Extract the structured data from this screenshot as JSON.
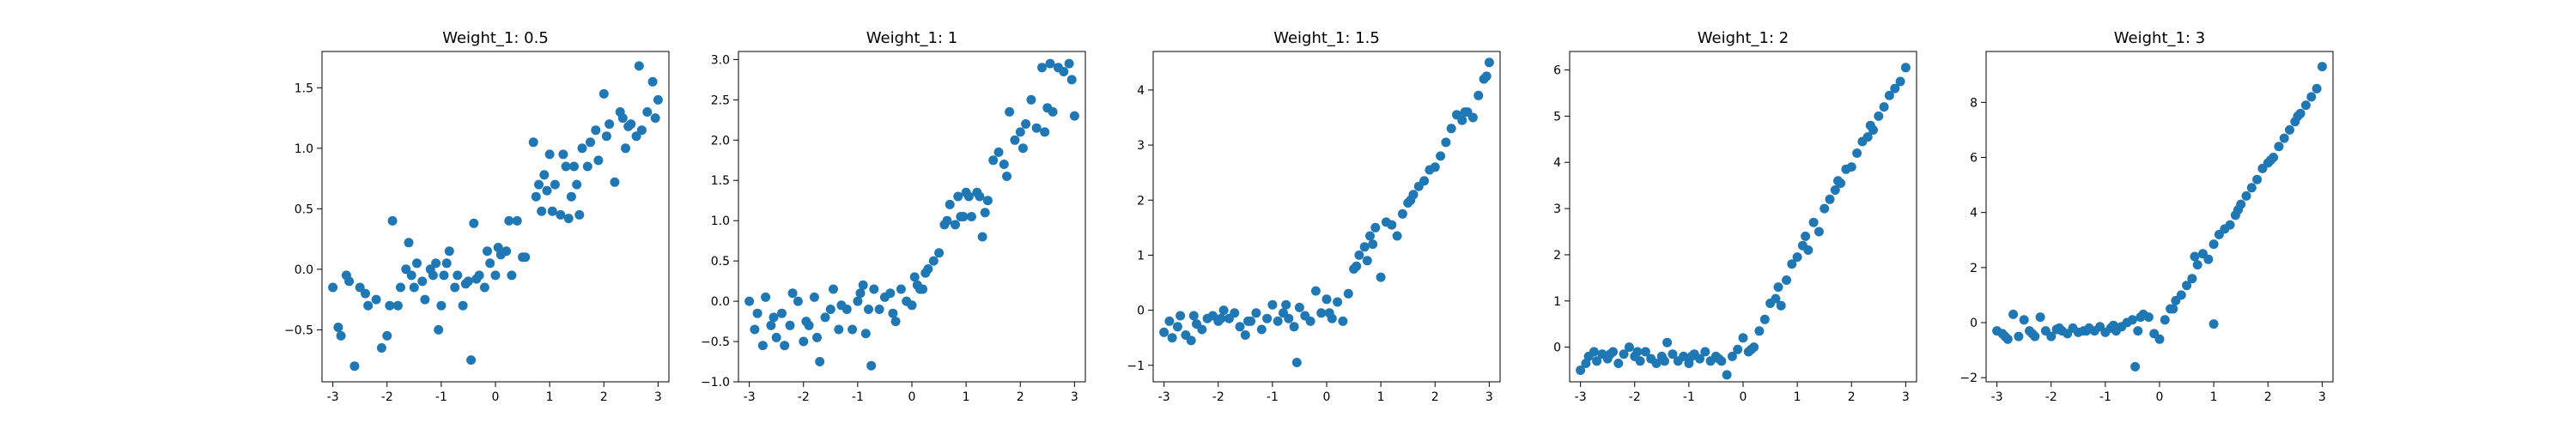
{
  "figure": {
    "point_color": "#1f77b4"
  },
  "chart_data": [
    {
      "type": "scatter",
      "title": "Weight_1: 0.5",
      "xlim": [
        -3.2,
        3.2
      ],
      "ylim": [
        -0.93,
        1.8
      ],
      "xticks": [
        -3,
        -2,
        -1,
        0,
        1,
        2,
        3
      ],
      "yticks": [
        -0.5,
        0.0,
        0.5,
        1.0,
        1.5
      ],
      "ytick_labels": [
        "−0.5",
        "0.0",
        "0.5",
        "1.0",
        "1.5"
      ],
      "x": [
        -3.0,
        -2.9,
        -2.85,
        -2.75,
        -2.7,
        -2.6,
        -2.5,
        -2.4,
        -2.35,
        -2.2,
        -2.1,
        -2.0,
        -1.95,
        -1.9,
        -1.8,
        -1.75,
        -1.65,
        -1.55,
        -1.5,
        -1.45,
        -1.35,
        -1.3,
        -1.2,
        -1.15,
        -1.1,
        -1.0,
        -0.95,
        -0.9,
        -0.85,
        -0.75,
        -0.7,
        -0.6,
        -0.55,
        -0.5,
        -0.4,
        -0.35,
        -0.3,
        -0.2,
        -0.15,
        -0.1,
        0.0,
        0.05,
        0.1,
        0.2,
        0.25,
        0.3,
        0.4,
        0.5,
        0.55,
        0.7,
        0.75,
        0.8,
        0.85,
        0.95,
        1.0,
        1.05,
        1.1,
        1.2,
        1.25,
        1.3,
        1.35,
        1.4,
        1.5,
        1.55,
        1.6,
        1.7,
        1.75,
        1.85,
        1.9,
        2.0,
        2.05,
        2.1,
        2.2,
        2.3,
        2.35,
        2.4,
        2.5,
        2.6,
        2.65,
        2.7,
        2.8,
        2.9,
        2.95,
        3.0,
        -0.45,
        -1.05,
        -1.6,
        0.9,
        1.45,
        2.45
      ],
      "y": [
        -0.15,
        -0.48,
        -0.55,
        -0.05,
        -0.1,
        -0.8,
        -0.15,
        -0.2,
        -0.3,
        -0.25,
        -0.65,
        -0.55,
        -0.3,
        0.4,
        -0.3,
        -0.15,
        0.0,
        -0.05,
        -0.15,
        0.05,
        -0.1,
        -0.25,
        0.0,
        -0.05,
        0.05,
        -0.3,
        -0.05,
        0.05,
        0.15,
        -0.15,
        -0.05,
        -0.3,
        -0.12,
        -0.1,
        0.38,
        -0.08,
        -0.05,
        -0.15,
        0.15,
        0.05,
        -0.05,
        0.18,
        0.12,
        0.15,
        0.4,
        -0.05,
        0.4,
        0.1,
        0.1,
        1.05,
        0.6,
        0.7,
        0.48,
        0.65,
        0.95,
        0.48,
        0.7,
        0.45,
        0.95,
        0.85,
        0.42,
        0.6,
        0.7,
        0.45,
        1.0,
        0.85,
        1.05,
        1.15,
        0.9,
        1.45,
        1.1,
        1.2,
        0.72,
        1.3,
        1.25,
        1.0,
        1.2,
        1.1,
        1.68,
        1.15,
        1.3,
        1.55,
        1.25,
        1.4,
        -0.75,
        -0.5,
        0.22,
        0.78,
        0.85,
        1.18
      ]
    },
    {
      "type": "scatter",
      "title": "Weight_1: 1",
      "xlim": [
        -3.2,
        3.2
      ],
      "ylim": [
        -1.0,
        3.1
      ],
      "xticks": [
        -3,
        -2,
        -1,
        0,
        1,
        2,
        3
      ],
      "yticks": [
        -1.0,
        -0.5,
        0.0,
        0.5,
        1.0,
        1.5,
        2.0,
        2.5,
        3.0
      ],
      "ytick_labels": [
        "−1.0",
        "−0.5",
        "0.0",
        "0.5",
        "1.0",
        "1.5",
        "2.0",
        "2.5",
        "3.0"
      ],
      "x": [
        -3.0,
        -2.9,
        -2.85,
        -2.75,
        -2.7,
        -2.6,
        -2.5,
        -2.4,
        -2.35,
        -2.25,
        -2.2,
        -2.1,
        -2.0,
        -1.95,
        -1.9,
        -1.8,
        -1.7,
        -1.6,
        -1.5,
        -1.45,
        -1.35,
        -1.3,
        -1.2,
        -1.1,
        -1.0,
        -0.95,
        -0.9,
        -0.8,
        -0.75,
        -0.7,
        -0.6,
        -0.5,
        -0.4,
        -0.35,
        -0.3,
        -0.2,
        -0.1,
        0.0,
        0.05,
        0.1,
        0.2,
        0.25,
        0.3,
        0.4,
        0.5,
        0.6,
        0.65,
        0.7,
        0.8,
        0.85,
        0.9,
        1.0,
        1.05,
        1.1,
        1.2,
        1.3,
        1.35,
        1.4,
        1.5,
        1.6,
        1.7,
        1.75,
        1.8,
        1.9,
        2.0,
        2.05,
        2.1,
        2.2,
        2.3,
        2.4,
        2.5,
        2.55,
        2.6,
        2.7,
        2.8,
        2.9,
        2.95,
        3.0,
        -2.55,
        -1.75,
        -0.85,
        0.15,
        0.95,
        1.25,
        2.45
      ],
      "y": [
        0.0,
        -0.35,
        -0.15,
        -0.55,
        0.05,
        -0.3,
        -0.45,
        -0.15,
        -0.55,
        -0.3,
        0.1,
        0.0,
        -0.5,
        -0.25,
        -0.3,
        0.05,
        -0.75,
        -0.2,
        -0.1,
        0.15,
        -0.35,
        -0.05,
        -0.1,
        -0.35,
        0.0,
        0.1,
        0.2,
        -0.1,
        -0.8,
        0.15,
        -0.1,
        0.05,
        0.1,
        -0.15,
        -0.25,
        0.15,
        0.0,
        -0.05,
        0.3,
        0.2,
        0.15,
        0.35,
        0.4,
        0.5,
        0.6,
        0.95,
        1.0,
        1.2,
        0.95,
        1.3,
        1.05,
        1.35,
        1.3,
        1.05,
        1.35,
        0.8,
        1.1,
        1.25,
        1.75,
        1.85,
        1.7,
        1.55,
        2.35,
        2.0,
        2.1,
        1.9,
        2.2,
        2.5,
        2.15,
        2.9,
        2.4,
        2.95,
        2.35,
        2.9,
        2.85,
        2.95,
        2.75,
        2.3,
        -0.2,
        -0.45,
        -0.4,
        0.15,
        1.05,
        1.3,
        2.1
      ]
    },
    {
      "type": "scatter",
      "title": "Weight_1: 1.5",
      "xlim": [
        -3.2,
        3.2
      ],
      "ylim": [
        -1.3,
        4.7
      ],
      "xticks": [
        -3,
        -2,
        -1,
        0,
        1,
        2,
        3
      ],
      "yticks": [
        -1,
        0,
        1,
        2,
        3,
        4
      ],
      "ytick_labels": [
        "−1",
        "0",
        "1",
        "2",
        "3",
        "4"
      ],
      "x": [
        -3.0,
        -2.9,
        -2.85,
        -2.75,
        -2.7,
        -2.6,
        -2.5,
        -2.4,
        -2.3,
        -2.2,
        -2.1,
        -2.0,
        -1.9,
        -1.8,
        -1.7,
        -1.6,
        -1.5,
        -1.4,
        -1.3,
        -1.2,
        -1.1,
        -1.0,
        -0.9,
        -0.8,
        -0.7,
        -0.6,
        -0.55,
        -0.5,
        -0.4,
        -0.3,
        -0.2,
        -0.1,
        0.0,
        0.1,
        0.2,
        0.3,
        0.4,
        0.5,
        0.55,
        0.6,
        0.7,
        0.75,
        0.8,
        0.9,
        1.0,
        1.1,
        1.2,
        1.3,
        1.4,
        1.5,
        1.6,
        1.7,
        1.8,
        1.9,
        2.0,
        2.1,
        2.2,
        2.3,
        2.4,
        2.5,
        2.6,
        2.7,
        2.8,
        2.9,
        2.95,
        3.0,
        -2.45,
        -1.95,
        -1.45,
        -0.75,
        0.05,
        0.85,
        1.55,
        2.55
      ],
      "y": [
        -0.4,
        -0.2,
        -0.5,
        -0.3,
        -0.1,
        -0.45,
        -0.55,
        -0.25,
        -0.35,
        -0.15,
        -0.1,
        -0.2,
        0.0,
        -0.15,
        -0.05,
        -0.3,
        -0.45,
        -0.2,
        -0.05,
        -0.35,
        -0.15,
        0.1,
        -0.2,
        -0.05,
        -0.15,
        -0.3,
        -0.95,
        0.05,
        -0.1,
        -0.2,
        0.35,
        -0.05,
        0.2,
        -0.15,
        0.15,
        -0.2,
        0.3,
        0.75,
        0.8,
        1.0,
        1.15,
        0.9,
        1.35,
        1.5,
        0.6,
        1.6,
        1.55,
        1.35,
        1.75,
        1.95,
        2.1,
        2.25,
        2.35,
        2.55,
        2.6,
        2.8,
        3.05,
        3.3,
        3.55,
        3.45,
        3.6,
        3.5,
        3.9,
        4.2,
        4.25,
        4.5,
        -0.1,
        -0.15,
        -0.2,
        0.1,
        -0.05,
        1.2,
        2.0,
        3.6
      ]
    },
    {
      "type": "scatter",
      "title": "Weight_1: 2",
      "xlim": [
        -3.2,
        3.2
      ],
      "ylim": [
        -0.75,
        6.4
      ],
      "xticks": [
        -3,
        -2,
        -1,
        0,
        1,
        2,
        3
      ],
      "yticks": [
        0,
        1,
        2,
        3,
        4,
        5,
        6
      ],
      "ytick_labels": [
        "0",
        "1",
        "2",
        "3",
        "4",
        "5",
        "6"
      ],
      "x": [
        -3.0,
        -2.9,
        -2.85,
        -2.75,
        -2.7,
        -2.6,
        -2.5,
        -2.4,
        -2.3,
        -2.2,
        -2.1,
        -2.0,
        -1.9,
        -1.8,
        -1.7,
        -1.6,
        -1.5,
        -1.4,
        -1.3,
        -1.2,
        -1.1,
        -1.0,
        -0.9,
        -0.8,
        -0.7,
        -0.6,
        -0.5,
        -0.4,
        -0.3,
        -0.2,
        -0.1,
        0.0,
        0.1,
        0.2,
        0.3,
        0.4,
        0.5,
        0.6,
        0.7,
        0.8,
        0.9,
        1.0,
        1.1,
        1.2,
        1.3,
        1.4,
        1.5,
        1.6,
        1.7,
        1.8,
        1.9,
        2.0,
        2.1,
        2.2,
        2.3,
        2.4,
        2.5,
        2.6,
        2.7,
        2.8,
        2.9,
        3.0,
        -2.45,
        -1.95,
        -1.45,
        -0.95,
        -0.45,
        0.15,
        0.65,
        1.15,
        1.75,
        2.35
      ],
      "y": [
        -0.5,
        -0.35,
        -0.2,
        -0.1,
        -0.3,
        -0.15,
        -0.25,
        -0.1,
        -0.35,
        -0.15,
        0.0,
        -0.2,
        -0.3,
        -0.1,
        -0.25,
        -0.35,
        -0.2,
        0.1,
        -0.15,
        -0.3,
        -0.2,
        -0.35,
        -0.15,
        -0.25,
        -0.1,
        -0.3,
        -0.2,
        -0.3,
        -0.6,
        -0.2,
        -0.05,
        0.2,
        -0.1,
        0.0,
        0.35,
        0.6,
        0.95,
        1.05,
        0.9,
        1.45,
        1.8,
        1.95,
        2.2,
        2.1,
        2.7,
        2.5,
        3.0,
        3.2,
        3.4,
        3.55,
        3.85,
        3.9,
        4.2,
        4.45,
        4.55,
        4.7,
        5.0,
        5.2,
        5.45,
        5.6,
        5.75,
        6.05,
        -0.15,
        -0.1,
        -0.3,
        -0.2,
        -0.25,
        -0.05,
        1.3,
        2.4,
        3.6,
        4.8
      ]
    },
    {
      "type": "scatter",
      "title": "Weight_1: 3",
      "xlim": [
        -3.2,
        3.2
      ],
      "ylim": [
        -2.15,
        9.85
      ],
      "xticks": [
        -3,
        -2,
        -1,
        0,
        1,
        2,
        3
      ],
      "yticks": [
        -2,
        0,
        2,
        4,
        6,
        8
      ],
      "ytick_labels": [
        "−2",
        "0",
        "2",
        "4",
        "6",
        "8"
      ],
      "x": [
        -3.0,
        -2.9,
        -2.8,
        -2.7,
        -2.6,
        -2.5,
        -2.4,
        -2.3,
        -2.2,
        -2.1,
        -2.0,
        -1.9,
        -1.8,
        -1.7,
        -1.6,
        -1.5,
        -1.4,
        -1.3,
        -1.2,
        -1.1,
        -1.0,
        -0.9,
        -0.8,
        -0.7,
        -0.6,
        -0.5,
        -0.45,
        -0.4,
        -0.3,
        -0.2,
        -0.1,
        0.0,
        0.1,
        0.2,
        0.3,
        0.4,
        0.5,
        0.6,
        0.7,
        0.8,
        0.9,
        1.0,
        1.1,
        1.2,
        1.3,
        1.4,
        1.5,
        1.6,
        1.7,
        1.8,
        1.9,
        2.0,
        2.1,
        2.2,
        2.3,
        2.4,
        2.5,
        2.6,
        2.7,
        2.8,
        2.9,
        3.0,
        -2.85,
        -2.35,
        -1.85,
        -1.35,
        -0.85,
        -0.35,
        0.25,
        0.65,
        1.0,
        1.45,
        2.05,
        2.55
      ],
      "y": [
        -0.3,
        -0.4,
        -0.6,
        0.3,
        -0.5,
        0.1,
        -0.3,
        -0.5,
        0.2,
        -0.3,
        -0.5,
        -0.25,
        -0.3,
        -0.4,
        -0.2,
        -0.35,
        -0.3,
        -0.2,
        -0.3,
        -0.15,
        -0.35,
        -0.2,
        -0.3,
        -0.15,
        0.0,
        0.1,
        -1.6,
        -0.3,
        0.3,
        0.2,
        -0.4,
        -0.6,
        0.1,
        0.5,
        0.8,
        1.0,
        1.35,
        1.6,
        2.1,
        2.5,
        2.3,
        2.85,
        3.2,
        3.4,
        3.55,
        3.9,
        4.3,
        4.6,
        4.9,
        5.2,
        5.6,
        5.8,
        6.0,
        6.4,
        6.7,
        7.0,
        7.3,
        7.6,
        7.9,
        8.2,
        8.5,
        9.3,
        -0.5,
        -0.4,
        -0.2,
        -0.3,
        -0.1,
        0.2,
        0.5,
        2.4,
        -0.05,
        4.1,
        5.9,
        7.5
      ]
    }
  ]
}
